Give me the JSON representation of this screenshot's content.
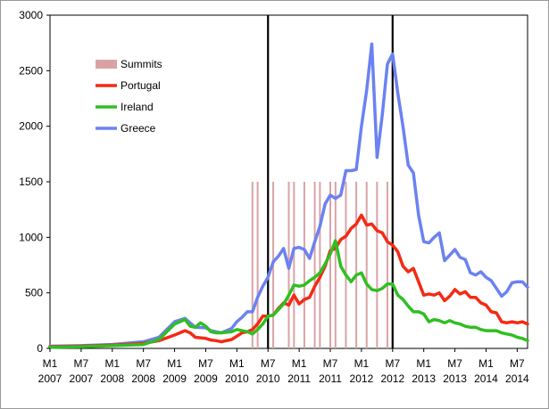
{
  "chart_data": {
    "type": "line",
    "title": "",
    "xlabel": "",
    "ylabel": "",
    "ylim": [
      0,
      3000
    ],
    "yticks": [
      0,
      500,
      1000,
      1500,
      2000,
      2500,
      3000
    ],
    "x_start_index": 0,
    "x_end_index": 92,
    "x_tick_labels": [
      {
        "i": 0,
        "top": "M1",
        "bottom": "2007"
      },
      {
        "i": 6,
        "top": "M7",
        "bottom": "2007"
      },
      {
        "i": 12,
        "top": "M1",
        "bottom": "2008"
      },
      {
        "i": 18,
        "top": "M7",
        "bottom": "2008"
      },
      {
        "i": 24,
        "top": "M1",
        "bottom": "2009"
      },
      {
        "i": 30,
        "top": "M7",
        "bottom": "2009"
      },
      {
        "i": 36,
        "top": "M1",
        "bottom": "2010"
      },
      {
        "i": 42,
        "top": "M7",
        "bottom": "2010"
      },
      {
        "i": 48,
        "top": "M1",
        "bottom": "2011"
      },
      {
        "i": 54,
        "top": "M7",
        "bottom": "2011"
      },
      {
        "i": 60,
        "top": "M1",
        "bottom": "2012"
      },
      {
        "i": 66,
        "top": "M7",
        "bottom": "2012"
      },
      {
        "i": 72,
        "top": "M1",
        "bottom": "2013"
      },
      {
        "i": 78,
        "top": "M7",
        "bottom": "2013"
      },
      {
        "i": 84,
        "top": "M1",
        "bottom": "2014"
      },
      {
        "i": 90,
        "top": "M7",
        "bottom": "2014"
      }
    ],
    "vertical_lines": [
      42,
      66
    ],
    "summits": {
      "name": "Summits",
      "color": "#d9a3a6",
      "value": 1500,
      "x": [
        39,
        40,
        43,
        46,
        47,
        49,
        51,
        52,
        54,
        55,
        57,
        59,
        61,
        63,
        65,
        66
      ]
    },
    "legend": {
      "placement": "top-left",
      "entries": [
        {
          "label": "Summits",
          "color": "#d9a3a6",
          "kind": "bar"
        },
        {
          "label": "Portugal",
          "color": "#f42a14",
          "kind": "line"
        },
        {
          "label": "Ireland",
          "color": "#2fbf21",
          "kind": "line"
        },
        {
          "label": "Greece",
          "color": "#6b82f0",
          "kind": "line"
        }
      ]
    },
    "series": [
      {
        "name": "Greece",
        "color": "#6b82f0",
        "points": [
          [
            0,
            20
          ],
          [
            6,
            25
          ],
          [
            12,
            35
          ],
          [
            18,
            60
          ],
          [
            21,
            100
          ],
          [
            24,
            240
          ],
          [
            26,
            270
          ],
          [
            27,
            230
          ],
          [
            28,
            190
          ],
          [
            30,
            185
          ],
          [
            31,
            160
          ],
          [
            32,
            150
          ],
          [
            33,
            140
          ],
          [
            35,
            180
          ],
          [
            36,
            240
          ],
          [
            37,
            280
          ],
          [
            38,
            330
          ],
          [
            39,
            330
          ],
          [
            40,
            460
          ],
          [
            41,
            560
          ],
          [
            42,
            640
          ],
          [
            43,
            780
          ],
          [
            44,
            830
          ],
          [
            45,
            900
          ],
          [
            46,
            720
          ],
          [
            47,
            900
          ],
          [
            48,
            910
          ],
          [
            49,
            890
          ],
          [
            50,
            810
          ],
          [
            51,
            960
          ],
          [
            52,
            1100
          ],
          [
            53,
            1300
          ],
          [
            54,
            1380
          ],
          [
            55,
            1350
          ],
          [
            56,
            1380
          ],
          [
            57,
            1600
          ],
          [
            58,
            1600
          ],
          [
            59,
            1610
          ],
          [
            60,
            2000
          ],
          [
            61,
            2320
          ],
          [
            62,
            2740
          ],
          [
            63,
            1720
          ],
          [
            64,
            2100
          ],
          [
            65,
            2560
          ],
          [
            66,
            2650
          ],
          [
            67,
            2300
          ],
          [
            68,
            2000
          ],
          [
            69,
            1650
          ],
          [
            70,
            1580
          ],
          [
            71,
            1200
          ],
          [
            72,
            960
          ],
          [
            73,
            950
          ],
          [
            74,
            1000
          ],
          [
            75,
            1040
          ],
          [
            76,
            790
          ],
          [
            77,
            840
          ],
          [
            78,
            890
          ],
          [
            79,
            820
          ],
          [
            80,
            800
          ],
          [
            81,
            680
          ],
          [
            82,
            660
          ],
          [
            83,
            690
          ],
          [
            84,
            640
          ],
          [
            85,
            610
          ],
          [
            86,
            540
          ],
          [
            87,
            470
          ],
          [
            88,
            510
          ],
          [
            89,
            590
          ],
          [
            90,
            600
          ],
          [
            91,
            600
          ],
          [
            92,
            550
          ]
        ]
      },
      {
        "name": "Portugal",
        "color": "#f42a14",
        "points": [
          [
            0,
            15
          ],
          [
            6,
            20
          ],
          [
            12,
            30
          ],
          [
            18,
            45
          ],
          [
            21,
            70
          ],
          [
            24,
            120
          ],
          [
            26,
            160
          ],
          [
            27,
            140
          ],
          [
            28,
            100
          ],
          [
            30,
            90
          ],
          [
            31,
            75
          ],
          [
            32,
            70
          ],
          [
            33,
            60
          ],
          [
            35,
            80
          ],
          [
            36,
            110
          ],
          [
            37,
            140
          ],
          [
            38,
            150
          ],
          [
            39,
            170
          ],
          [
            40,
            220
          ],
          [
            41,
            290
          ],
          [
            42,
            290
          ],
          [
            43,
            300
          ],
          [
            44,
            360
          ],
          [
            45,
            410
          ],
          [
            46,
            390
          ],
          [
            47,
            480
          ],
          [
            48,
            400
          ],
          [
            49,
            440
          ],
          [
            50,
            460
          ],
          [
            51,
            560
          ],
          [
            52,
            640
          ],
          [
            53,
            740
          ],
          [
            54,
            880
          ],
          [
            55,
            900
          ],
          [
            56,
            980
          ],
          [
            57,
            1010
          ],
          [
            58,
            1080
          ],
          [
            59,
            1120
          ],
          [
            60,
            1200
          ],
          [
            61,
            1110
          ],
          [
            62,
            1120
          ],
          [
            63,
            1060
          ],
          [
            64,
            1040
          ],
          [
            65,
            960
          ],
          [
            66,
            930
          ],
          [
            67,
            870
          ],
          [
            68,
            740
          ],
          [
            69,
            690
          ],
          [
            70,
            720
          ],
          [
            71,
            600
          ],
          [
            72,
            480
          ],
          [
            73,
            490
          ],
          [
            74,
            480
          ],
          [
            75,
            500
          ],
          [
            76,
            430
          ],
          [
            77,
            470
          ],
          [
            78,
            530
          ],
          [
            79,
            490
          ],
          [
            80,
            510
          ],
          [
            81,
            460
          ],
          [
            82,
            460
          ],
          [
            83,
            410
          ],
          [
            84,
            390
          ],
          [
            85,
            330
          ],
          [
            86,
            320
          ],
          [
            87,
            240
          ],
          [
            88,
            230
          ],
          [
            89,
            240
          ],
          [
            90,
            230
          ],
          [
            91,
            240
          ],
          [
            92,
            220
          ]
        ]
      },
      {
        "name": "Ireland",
        "color": "#2fbf21",
        "points": [
          [
            0,
            10
          ],
          [
            6,
            15
          ],
          [
            12,
            25
          ],
          [
            18,
            35
          ],
          [
            21,
            80
          ],
          [
            24,
            220
          ],
          [
            26,
            260
          ],
          [
            27,
            200
          ],
          [
            28,
            190
          ],
          [
            29,
            230
          ],
          [
            30,
            200
          ],
          [
            31,
            150
          ],
          [
            32,
            140
          ],
          [
            33,
            140
          ],
          [
            35,
            150
          ],
          [
            36,
            170
          ],
          [
            37,
            160
          ],
          [
            38,
            150
          ],
          [
            39,
            130
          ],
          [
            40,
            170
          ],
          [
            41,
            220
          ],
          [
            42,
            290
          ],
          [
            43,
            300
          ],
          [
            44,
            350
          ],
          [
            45,
            400
          ],
          [
            46,
            480
          ],
          [
            47,
            570
          ],
          [
            48,
            560
          ],
          [
            49,
            570
          ],
          [
            50,
            610
          ],
          [
            51,
            640
          ],
          [
            52,
            680
          ],
          [
            53,
            760
          ],
          [
            54,
            850
          ],
          [
            55,
            970
          ],
          [
            56,
            740
          ],
          [
            57,
            660
          ],
          [
            58,
            600
          ],
          [
            59,
            660
          ],
          [
            60,
            680
          ],
          [
            61,
            580
          ],
          [
            62,
            530
          ],
          [
            63,
            520
          ],
          [
            64,
            540
          ],
          [
            65,
            580
          ],
          [
            66,
            580
          ],
          [
            67,
            480
          ],
          [
            68,
            440
          ],
          [
            69,
            380
          ],
          [
            70,
            330
          ],
          [
            71,
            330
          ],
          [
            72,
            310
          ],
          [
            73,
            240
          ],
          [
            74,
            260
          ],
          [
            75,
            250
          ],
          [
            76,
            230
          ],
          [
            77,
            250
          ],
          [
            78,
            230
          ],
          [
            79,
            220
          ],
          [
            80,
            200
          ],
          [
            81,
            190
          ],
          [
            82,
            190
          ],
          [
            83,
            170
          ],
          [
            84,
            160
          ],
          [
            85,
            160
          ],
          [
            86,
            160
          ],
          [
            87,
            140
          ],
          [
            88,
            130
          ],
          [
            89,
            120
          ],
          [
            90,
            100
          ],
          [
            91,
            90
          ],
          [
            92,
            70
          ]
        ]
      }
    ]
  }
}
